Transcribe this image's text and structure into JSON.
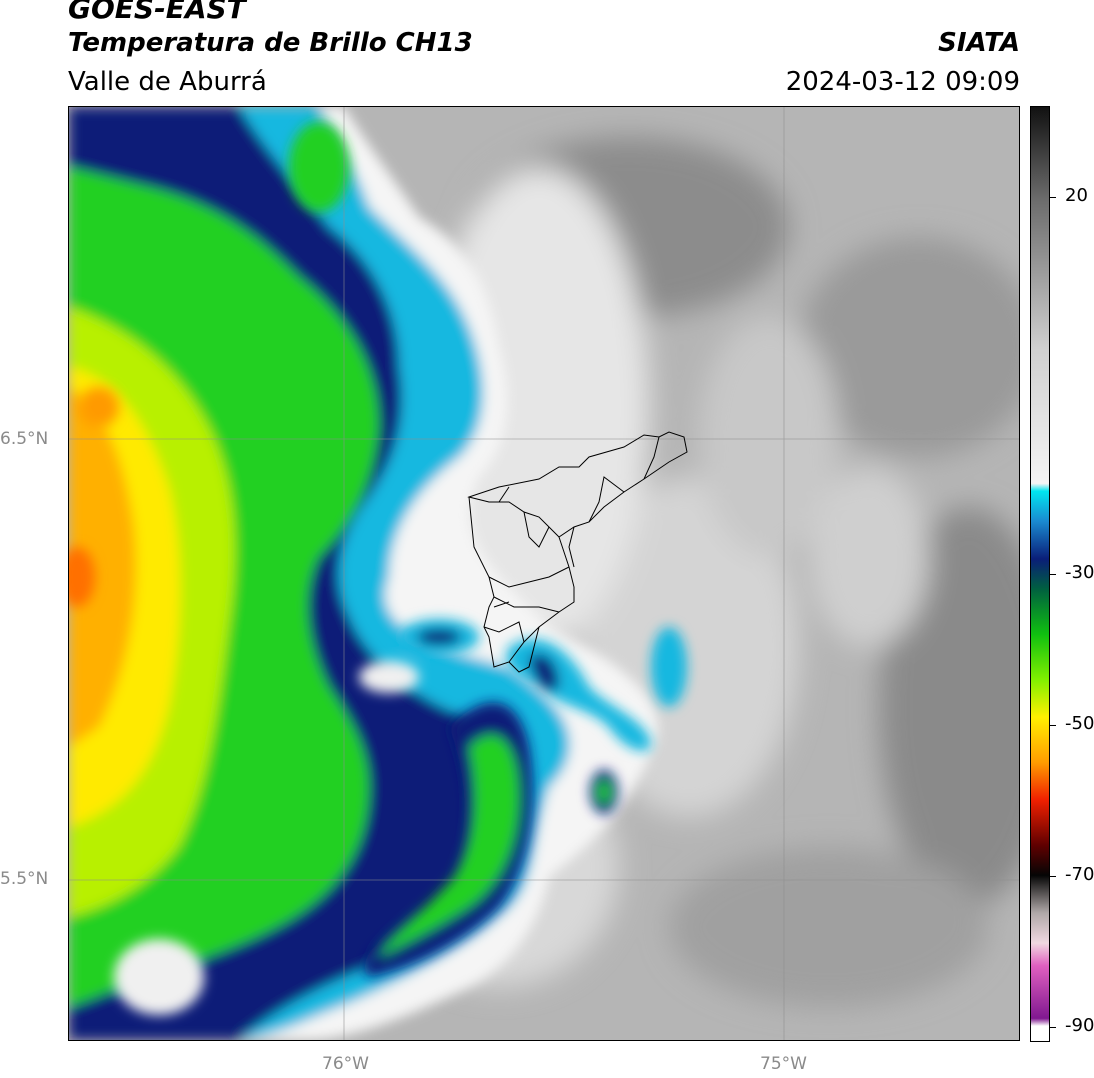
{
  "header": {
    "satellite": "GOES-EAST",
    "product": "Temperatura de Brillo CH13",
    "agency": "SIATA",
    "region": "Valle de Aburrá",
    "timestamp": "2024-03-12 09:09"
  },
  "map": {
    "latitude_labels": [
      "6.5°N",
      "5.5°N"
    ],
    "longitude_labels": [
      "76°W",
      "75°W"
    ],
    "colors": {
      "cold_cloud_green": "#22dd22",
      "yellow": "#eeff00",
      "orange": "#ffb400",
      "navy": "#0a1e78",
      "cyan": "#00c8e6",
      "warm_gray": "#b8b8b8",
      "light_gray": "#e8e8e8"
    }
  },
  "colorbar": {
    "tick_labels": [
      "20",
      "-30",
      "-50",
      "-70",
      "-90"
    ],
    "tick_values": [
      20,
      -30,
      -50,
      -70,
      -90
    ],
    "range": [
      -92,
      32
    ],
    "stops": [
      {
        "v": 32,
        "c": "#111111"
      },
      {
        "v": 20,
        "c": "#6a6a6a"
      },
      {
        "v": 0,
        "c": "#cfcfcf"
      },
      {
        "v": -18,
        "c": "#f4f4f4"
      },
      {
        "v": -19,
        "c": "#00e6f0"
      },
      {
        "v": -23,
        "c": "#1a8ad0"
      },
      {
        "v": -28,
        "c": "#0a1e78"
      },
      {
        "v": -32,
        "c": "#006040"
      },
      {
        "v": -38,
        "c": "#10c010"
      },
      {
        "v": -44,
        "c": "#80f000"
      },
      {
        "v": -49,
        "c": "#fff000"
      },
      {
        "v": -55,
        "c": "#ff9c00"
      },
      {
        "v": -60,
        "c": "#f02000"
      },
      {
        "v": -66,
        "c": "#600000"
      },
      {
        "v": -70,
        "c": "#050505"
      },
      {
        "v": -75,
        "c": "#b0a8a8"
      },
      {
        "v": -79,
        "c": "#f0d8e0"
      },
      {
        "v": -82,
        "c": "#e060c0"
      },
      {
        "v": -89,
        "c": "#801890"
      },
      {
        "v": -90,
        "c": "#ffffff"
      },
      {
        "v": -92,
        "c": "#ffffff"
      }
    ]
  }
}
